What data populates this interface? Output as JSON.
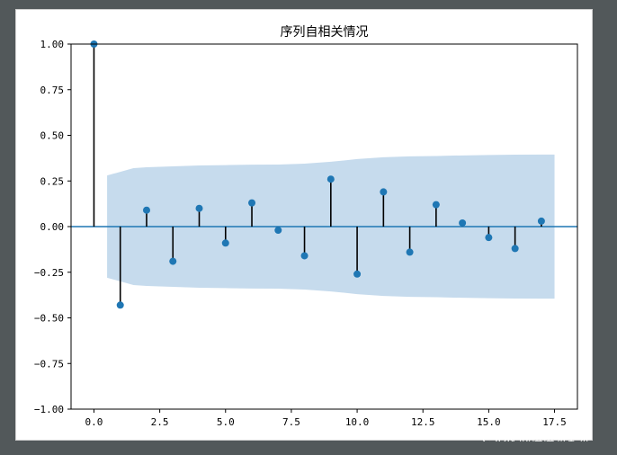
{
  "chart_data": {
    "type": "stem",
    "title": "序列自相关情况",
    "xlabel": "",
    "ylabel": "",
    "xlim": [
      -0.87,
      18.37
    ],
    "ylim": [
      -1.0,
      1.0
    ],
    "x_ticks": [
      0.0,
      2.5,
      5.0,
      7.5,
      10.0,
      12.5,
      15.0,
      17.5
    ],
    "x_tick_labels": [
      "0.0",
      "2.5",
      "5.0",
      "7.5",
      "10.0",
      "12.5",
      "15.0",
      "17.5"
    ],
    "y_ticks": [
      1.0,
      0.75,
      0.5,
      0.25,
      0.0,
      -0.25,
      -0.5,
      -0.75,
      -1.0
    ],
    "y_tick_labels": [
      "1.00",
      "0.75",
      "0.50",
      "0.25",
      "0.00",
      "−0.25",
      "−0.50",
      "−0.75",
      "−1.00"
    ],
    "lags": [
      0,
      1,
      2,
      3,
      4,
      5,
      6,
      7,
      8,
      9,
      10,
      11,
      12,
      13,
      14,
      15,
      16,
      17
    ],
    "values": [
      1.0,
      -0.43,
      0.09,
      -0.19,
      0.1,
      -0.09,
      0.13,
      -0.02,
      -0.16,
      0.26,
      -0.26,
      0.19,
      -0.14,
      0.12,
      0.02,
      -0.06,
      -0.12,
      0.03
    ],
    "confidence_band": {
      "x": [
        0.5,
        1.5,
        2,
        3,
        4,
        5,
        6,
        7,
        8,
        9,
        10,
        11,
        12,
        13,
        14,
        15,
        16,
        17,
        17.5
      ],
      "upper": [
        0.28,
        0.32,
        0.325,
        0.33,
        0.335,
        0.337,
        0.339,
        0.34,
        0.345,
        0.355,
        0.37,
        0.38,
        0.385,
        0.387,
        0.39,
        0.392,
        0.394,
        0.395,
        0.395
      ]
    },
    "colors": {
      "marker": "#1f77b4",
      "stem": "#000000",
      "zero_line": "#1f77b4",
      "band": "#c6dbed"
    },
    "grid": false,
    "legend": "none"
  },
  "watermark": "CSDN @琪琪%￥%"
}
